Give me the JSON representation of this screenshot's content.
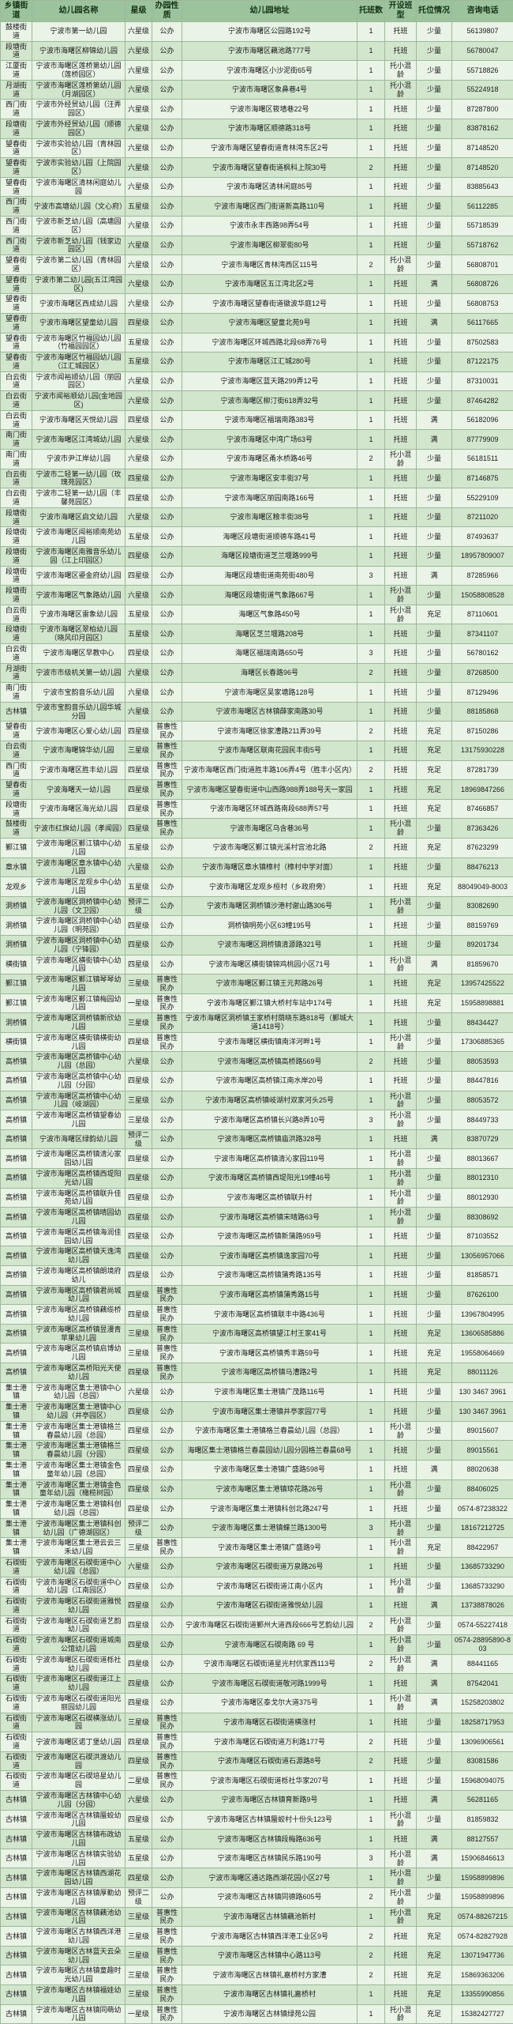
{
  "table": {
    "columns": [
      "乡镇街道",
      "幼儿园名称",
      "星级",
      "办园性质",
      "幼儿园地址",
      "托班数",
      "开设班型",
      "托位情况",
      "咨询电话"
    ],
    "rows": [
      [
        "鼓楼街道",
        "宁波市第一幼儿园",
        "六星级",
        "公办",
        "宁波市海曙区公园路192号",
        "1",
        "托班",
        "少量",
        "56139807"
      ],
      [
        "段塘街道",
        "宁波市海曙区柳锦幼儿园",
        "六星级",
        "公办",
        "宁波市海曙区藕池路777号",
        "1",
        "托班",
        "少量",
        "56780047"
      ],
      [
        "江厦街道",
        "宁波市海曙区莲桥第幼儿园（莲桥园区）",
        "六星级",
        "公办",
        "宁波市海曙区小沙泥街65号",
        "1",
        "托小混龄",
        "少量",
        "55718826"
      ],
      [
        "月湖街道",
        "宁波市海曙区莲桥第幼儿园（月湖园区）",
        "六星级",
        "公办",
        "宁波市海曙区象鼻巷4号",
        "1",
        "托小混龄",
        "少量",
        "55224918"
      ],
      [
        "西门街道",
        "宁波市外经贸幼儿园（汪弄园区）",
        "六星级",
        "公办",
        "宁波市海曙区筱墙巷22号",
        "1",
        "托班",
        "少量",
        "87287800"
      ],
      [
        "段塘街道",
        "宁波市外经贸幼儿园（顺德园区）",
        "六星级",
        "公办",
        "宁波市海曙区顺德路318号",
        "1",
        "托班",
        "少量",
        "83878162"
      ],
      [
        "望春街道",
        "宁波市实验幼儿园（青林园区）",
        "六星级",
        "公办",
        "宁波市海曙区望春街道青林湾东区2号",
        "1",
        "托班",
        "少量",
        "87148520"
      ],
      [
        "望春街道",
        "宁波市实验幼儿园（上院园区）",
        "六星级",
        "公办",
        "宁波市海曙区望春街道枫科上院30号",
        "2",
        "托班",
        "少量",
        "87148520"
      ],
      [
        "望春街道",
        "宁波市海曙区清林闲庭幼儿园",
        "六星级",
        "公办",
        "宁波市海曙区清林闲庭85号",
        "1",
        "托班",
        "少量",
        "83885643"
      ],
      [
        "西门街道",
        "宁波市高塘幼儿园（文心府）",
        "五星级",
        "公办",
        "宁波市海曙区西门街道新高路110号",
        "1",
        "托班",
        "少量",
        "56112285"
      ],
      [
        "西门街道",
        "宁波市新芝幼儿园（高塘园区）",
        "六星级",
        "公办",
        "宁波市永丰西路98弄54号",
        "1",
        "托班",
        "少量",
        "55718539"
      ],
      [
        "西门街道",
        "宁波市新芝幼儿园（钱家边园区）",
        "六星级",
        "公办",
        "宁波市海曙区柳翠街80号",
        "1",
        "托班",
        "少量",
        "55718762"
      ],
      [
        "望春街道",
        "宁波市第二幼儿园（青林园区）",
        "六星级",
        "公办",
        "宁波市海曙区青林湾西区115号",
        "2",
        "托小混龄",
        "少量",
        "56808701"
      ],
      [
        "望春街道",
        "宁波市第二幼儿园(五江湾园区)",
        "六星级",
        "公办",
        "宁波市海曙区五江湾北区2号",
        "1",
        "托班",
        "满",
        "56808726"
      ],
      [
        "望春街道",
        "宁波市海曙区西成幼儿园",
        "六星级",
        "公办",
        "宁波市海曙区望春街道徽波华庭12号",
        "1",
        "托班",
        "少量",
        "56808753"
      ],
      [
        "望春街道",
        "宁波市海曙区望童幼儿园",
        "四星级",
        "公办",
        "宁波市海曙区望童北苑9号",
        "1",
        "托班",
        "满",
        "56117665"
      ],
      [
        "望春街道",
        "宁波市海曙区竹福园幼儿园（竹福园园区）",
        "五星级",
        "公办",
        "宁波市海曙区环城西路北段68弄76号",
        "1",
        "托班",
        "少量",
        "87502583"
      ],
      [
        "望春街道",
        "宁波市海曙区竹福园幼儿园（江汇城园区）",
        "五星级",
        "公办",
        "宁波市海曙区江汇城280号",
        "1",
        "托班",
        "少量",
        "87122175"
      ],
      [
        "白云街道",
        "宁波市闻裕顺幼儿园（丽园园区）",
        "六星级",
        "公办",
        "宁波市海曙区蓝天路299弄12号",
        "1",
        "托班",
        "少量",
        "87310031"
      ],
      [
        "白云街道",
        "宁波市闻裕顺幼儿园(金地园区)",
        "六星级",
        "公办",
        "宁波市海曙区柳汀街618弄32号",
        "1",
        "托班",
        "少量",
        "87464282"
      ],
      [
        "白云街道",
        "宁波市海曙区天悦幼儿园",
        "四星级",
        "公办",
        "宁波市海曙区福瑞南路383号",
        "1",
        "托班",
        "满",
        "56182096"
      ],
      [
        "南门街道",
        "宁波市海曙区江湾城幼儿园",
        "六星级",
        "公办",
        "宁波市海曙区中湾广场63号",
        "1",
        "托班",
        "满",
        "87779909"
      ],
      [
        "南门街道",
        "宁波市尹江岸幼儿园",
        "六星级",
        "公办",
        "宁波市海曙区甬水桥路46号",
        "2",
        "托小混龄",
        "少量",
        "56181511"
      ],
      [
        "白云街道",
        "宁波市二轻第一幼儿园（玫瑰苑园区）",
        "四星级",
        "公办",
        "宁波市海曙区安丰街37号",
        "1",
        "托班",
        "少量",
        "87146875"
      ],
      [
        "白云街道",
        "宁波市二轻第一幼儿园（丰馨苑园区）",
        "四星级",
        "公办",
        "宁波市海曙区丽园南路166号",
        "1",
        "托班",
        "少量",
        "55229109"
      ],
      [
        "段塘街道",
        "宁波市海曙区启文幼儿园",
        "六星级",
        "公办",
        "宁波市海曙区粮丰街38号",
        "1",
        "托班",
        "少量",
        "87211020"
      ],
      [
        "段塘街道",
        "宁波市海曙区闻裕顺南苑幼儿园",
        "五星级",
        "公办",
        "海曙区段塘街道顺德车路41号",
        "1",
        "托班",
        "少量",
        "87493637"
      ],
      [
        "段塘街道",
        "宁波市海曙区南雅音乐幼儿园（江上印园区）",
        "四星级",
        "公办",
        "海曙区段塘街道芝兰堰路999号",
        "1",
        "托班",
        "少量",
        "18957809007"
      ],
      [
        "段塘街道",
        "宁波市海曙区鎏金府幼儿园",
        "四星级",
        "公办",
        "海曙区段塘街道南苑街480号",
        "3",
        "托班",
        "满",
        "87285966"
      ],
      [
        "段塘街道",
        "宁波市海曙区气象路幼儿园",
        "六星级",
        "公办",
        "海曙区段塘街道气象路667号",
        "1",
        "托小混龄",
        "少量",
        "15058808528"
      ],
      [
        "白云街道",
        "宁波市海曙区雷象幼儿园",
        "五星级",
        "公办",
        "海曙区气象路450号",
        "1",
        "托小混龄",
        "充足",
        "87110601"
      ],
      [
        "段塘街道",
        "宁波市海曙区翠柏幼儿园（晓风印月园区）",
        "五星级",
        "公办",
        "海曙区芝兰堰路208号",
        "1",
        "托班",
        "少量",
        "87341107"
      ],
      [
        "白云街道",
        "宁波市海曙区早教中心",
        "四星级",
        "公办",
        "海曙区福瑞南路650号",
        "3",
        "托班",
        "少量",
        "56780162"
      ],
      [
        "月湖街道",
        "宁波市市级机关第一幼儿园",
        "六星级",
        "公办",
        "海曙区长春路96号",
        "2",
        "托班",
        "少量",
        "87268500"
      ],
      [
        "南门街道",
        "宁波市宝韵音乐幼儿园",
        "六星级",
        "公办",
        "宁波市海曙区吴家塘路128号",
        "1",
        "托班",
        "少量",
        "87129496"
      ],
      [
        "古林镇",
        "宁波市宝韵音乐幼儿园华城分园",
        "六星级",
        "公办",
        "宁波市海曙区古林镇薛家南路30号",
        "1",
        "托班",
        "少量",
        "88185868"
      ],
      [
        "望春街道",
        "宁波市海曙区心爱心幼儿园",
        "四星级",
        "普惠性民办",
        "宁波市海曙区徐家漕路211弄39号",
        "2",
        "托班",
        "充足",
        "87150286"
      ],
      [
        "白云街道",
        "宁波市海曙锦华幼儿园",
        "三星级",
        "普惠性民办",
        "宁波市海曙区联南花园民丰街5号",
        "1",
        "托班",
        "充足",
        "13175930228"
      ],
      [
        "西门街道",
        "宁波市海曙区胜丰幼儿园",
        "四星级",
        "普惠性民办",
        "宁波市海曙区西门街道胜丰路106弄4号（胜丰小区内）",
        "2",
        "托班",
        "充足",
        "87281739"
      ],
      [
        "望春街道",
        "宁波海曙天一幼儿园",
        "四星级",
        "普惠性民办",
        "宁波市海曙区望春街道中山西路988弄188号天一家园",
        "1",
        "托班",
        "充足",
        "18969847266"
      ],
      [
        "段塘街道",
        "宁波市海曙区海光幼儿园",
        "四星级",
        "普惠性民办",
        "宁波市海曙区环城西路南段688弄57号",
        "1",
        "托班",
        "充足",
        "87466857"
      ],
      [
        "鼓楼街道",
        "宁波市红旗幼儿园（孝闻园）",
        "四星级",
        "普惠性民办",
        "宁波市海曙区乌含巷36号",
        "1",
        "托小混龄",
        "少量",
        "87363426"
      ],
      [
        "鄞江镇",
        "宁波市海曙区鄞江镇中心幼儿园",
        "五星级",
        "公办",
        "宁波市海曙区鄞江镇光溪村宫池北路",
        "2",
        "托班",
        "充足",
        "87623299"
      ],
      [
        "章水镇",
        "宁波市海曙区章水镇中心幼儿园",
        "六星级",
        "公办",
        "宁波市海曙区章水镇樟村（樟村中学对面）",
        "1",
        "托班",
        "少量",
        "88476213"
      ],
      [
        "龙观乡",
        "宁波市海曙区龙观乡中心幼儿园",
        "五星级",
        "公办",
        "宁波市海曙区龙观乡桓村（乡政府旁）",
        "1",
        "托班",
        "充足",
        "88049049-8003"
      ],
      [
        "洞桥镇",
        "宁波市海曙区洞桥镇中心幼儿园（文卫园）",
        "预评二级",
        "公办",
        "宁波市海曙区洞桥镇沙港村谢山路306号",
        "1",
        "托小混龄",
        "少量",
        "83082690"
      ],
      [
        "洞桥镇",
        "宁波市海曙区洞桥镇中心幼儿园（明苑园）",
        "四星级",
        "公办",
        "洞桥镇明苑小区63幢195号",
        "1",
        "托班",
        "少量",
        "88159769"
      ],
      [
        "洞桥镇",
        "宁波市海曙区洞桥镇中心幼儿园（宁锋园）",
        "四星级",
        "公办",
        "宁波市海曙区洞桥镇清源路321号",
        "1",
        "托班",
        "少量",
        "89201734"
      ],
      [
        "横街镇",
        "宁波市海曙区横街镇中心幼儿园",
        "四星级",
        "公办",
        "宁波市海曙区横街镇锦鸡桃园小区71号",
        "1",
        "托小混龄",
        "满",
        "81859670"
      ],
      [
        "鄞江镇",
        "宁波市海曙区鄞江镇琴琴幼儿园",
        "三星级",
        "普惠性民办",
        "宁波市海曙区鄞江镇王元邦路26号",
        "1",
        "托班",
        "充足",
        "13957425522"
      ],
      [
        "鄞江镇",
        "宁波市海曙区鄞江镇梅园幼儿园",
        "一星级",
        "普惠性民办",
        "宁波市海曙区鄞江镇大桥村车站中174号",
        "1",
        "托班",
        "充足",
        "15958898881"
      ],
      [
        "洞桥镇",
        "宁波市海曙区洞桥镇新欣幼儿园",
        "三星级",
        "普惠性民办",
        "宁波市海曙区洞桥镇王家桥村荫晓东路818号（鄞城大道1418号）",
        "1",
        "托班",
        "少量",
        "88434427"
      ],
      [
        "横街镇",
        "宁波市海曙区横街镇横街幼儿园",
        "四星级",
        "普惠性民办",
        "宁波市海曙区横街镇南洋河畔1号",
        "1",
        "托小混龄",
        "少量",
        "17306885365"
      ],
      [
        "高桥镇",
        "宁波市海曙区高桥镇中心幼儿园（总园）",
        "六星级",
        "公办",
        "宁波市海曙区高桥镇高桥路569号",
        "2",
        "托班",
        "少量",
        "88053593"
      ],
      [
        "高桥镇",
        "宁波市海曙区高桥镇中心幼儿园（分园）",
        "四星级",
        "公办",
        "宁波市海曙区高桥镇江南水岸20号",
        "1",
        "托班",
        "少量",
        "88447816"
      ],
      [
        "高桥镇",
        "宁波市海曙区高桥镇中心幼儿园（岐湖园）",
        "三星级",
        "公办",
        "宁波市海曙区高桥镇岐湖村双家河头25号",
        "1",
        "托小混龄",
        "少量",
        "88053572"
      ],
      [
        "高桥镇",
        "宁波市海曙区高桥镇望春幼儿园",
        "三星级",
        "公办",
        "宁波市海曙区高桥镇长兴路8弄10号",
        "3",
        "托小混龄",
        "少量",
        "88449733"
      ],
      [
        "高桥镇",
        "宁波市海曙区绿韵幼儿园",
        "预评二级",
        "公办",
        "宁波市海曙区高桥镇庙洪路328号",
        "1",
        "托班",
        "满",
        "83870729"
      ],
      [
        "高桥镇",
        "宁波市海曙区高桥镇清沁家园幼儿园",
        "四星级",
        "公办",
        "宁波市海曙区高桥镇清沁家园119号",
        "1",
        "托小混龄",
        "少量",
        "88013667"
      ],
      [
        "高桥镇",
        "宁波市海曙区高桥镇西堤阳光幼儿园",
        "四星级",
        "公办",
        "宁波市海曙区高桥镇西堤阳光19幢46号",
        "1",
        "托小混龄",
        "少量",
        "88012310"
      ],
      [
        "高桥镇",
        "宁波市海曙区高桥镇联升佳苑幼儿园",
        "四星级",
        "公办",
        "宁波市海曙区高桥镇联升村",
        "1",
        "托小混龄",
        "少量",
        "88012930"
      ],
      [
        "高桥镇",
        "宁波市海曙区高桥镇晴园幼儿园",
        "四星级",
        "公办",
        "宁波市海曙区高桥镇宋晴路63号",
        "1",
        "托小混龄",
        "少量",
        "88308692"
      ],
      [
        "高桥镇",
        "宁波市海曙区高桥镇海润佳园幼儿园",
        "四星级",
        "公办",
        "宁波市海曙区高桥镇新蒲路959号",
        "1",
        "托班",
        "少量",
        "87103552"
      ],
      [
        "高桥镇",
        "宁波市海曙区高桥镇天逸湾幼儿园",
        "四星级",
        "公办",
        "宁波市海曙区高桥镇逸家园70号",
        "1",
        "托班",
        "少量",
        "13056957066"
      ],
      [
        "高桥镇",
        "宁波市海曙区高桥镇朗境府幼儿",
        "四星级",
        "公办",
        "宁波市海曙区高桥镇蒲秀路135号",
        "1",
        "托班",
        "少量",
        "81858571"
      ],
      [
        "高桥镇",
        "宁波市海曙区高桥镇君尚城幼儿园",
        "四星级",
        "普惠性民办",
        "宁波市海曙区高桥镇蒲秀路15号",
        "1",
        "托班",
        "少量",
        "87626100"
      ],
      [
        "高桥镇",
        "宁波市海曙区高桥镇藕缆桥幼儿园",
        "四星级",
        "普惠性民办",
        "宁波市海曙区高桥镇联丰中路436号",
        "1",
        "托班",
        "少量",
        "13967804995"
      ],
      [
        "高桥镇",
        "宁波市海曙区高桥镇昱漫青苹果幼儿园",
        "三星级",
        "普惠性民办",
        "宁波市海曙区高桥镇望江村王家41号",
        "1",
        "托班",
        "充足",
        "13606585886"
      ],
      [
        "高桥镇",
        "宁波市海曙区高桥镇启博幼儿园",
        "三星级",
        "普惠性民办",
        "宁波市海曙区高桥镇秀丰路59号",
        "1",
        "托班",
        "充足",
        "19558064669"
      ],
      [
        "高桥镇",
        "宁波市海曙区高桥阳光天使幼儿园",
        "四星级",
        "普惠性民办",
        "宁波市海曙区高桥镇马漕路2号",
        "1",
        "托班",
        "充足",
        "88011126"
      ],
      [
        "集士港镇",
        "宁波市海曙区集士港镇中心幼儿园（总园）",
        "六星级",
        "公办",
        "宁波市海曙区集士港镇广茂路116号",
        "1",
        "托班",
        "少量",
        "130 3467 3961"
      ],
      [
        "集士港镇",
        "宁波市海曙区集士港镇中心幼儿园（井亭园区）",
        "四星级",
        "公办",
        "宁波市海曙区集士港镇井亭家园77号",
        "1",
        "托班",
        "少量",
        "130 3467 3961"
      ],
      [
        "集士港镇",
        "宁波市海曙区集士港镇格兰春晨幼儿园（总园）",
        "四星级",
        "公办",
        "宁波市海曙区集士港镇格兰春晨幼儿园（总园）",
        "1",
        "托小混龄",
        "少量",
        "89015607"
      ],
      [
        "集士港镇",
        "宁波市海曙区集士港镇格兰春晨幼儿园（分园）",
        "四星级",
        "公办",
        "海曙区集士港镇格兰春晨园幼儿园分园格兰春晨68号",
        "1",
        "托班",
        "少量",
        "89015561"
      ],
      [
        "集士港镇",
        "宁波市海曙区集士港镇金色童年幼儿园（总园）",
        "四星级",
        "公办",
        "宁波市海曙区集士港镇广盛路598号",
        "1",
        "托班",
        "满",
        "88020638"
      ],
      [
        "集士港镇",
        "宁波市海曙区集士港镇金色童年幼儿园（橄榄树园）",
        "四星级",
        "公办",
        "宁波市海曙区集士港镇琼花路26号",
        "1",
        "托小混龄",
        "少量",
        "88406025"
      ],
      [
        "集士港镇",
        "宁波市海曙区集士港镇科创幼儿园（总园）",
        "四星级",
        "公办",
        "宁波市海曙区集士港镇科创北路247号",
        "1",
        "托班",
        "少量",
        "0574-87238322"
      ],
      [
        "集士港镇",
        "宁波市海曙区集士港镇科创幼儿园（广德湖园区）",
        "预评二级",
        "公办",
        "宁波市海曙区集士港镇蝶兰路1300号",
        "3",
        "托小混龄",
        "少量",
        "18167212725"
      ],
      [
        "集士港镇",
        "宁波市海曙区集士港云云三禾幼儿园",
        "三星级",
        "普惠性民办",
        "宁波市海曙区集士港镇广盛路9号",
        "1",
        "托小混龄",
        "充足",
        "88422957"
      ],
      [
        "石碶街道",
        "宁波市海曙区石碶街道中心幼儿园（总园）",
        "六星级",
        "公办",
        "宁波市海曙区石碶街道万泉路26号",
        "1",
        "托班",
        "少量",
        "13685733290"
      ],
      [
        "石碶街道",
        "宁波市海曙区石碶街道中心幼儿园（江南园区）",
        "四星级",
        "公办",
        "宁波市海曙区石碶街道江南小区内",
        "1",
        "托小混龄",
        "少量",
        "13685733290"
      ],
      [
        "石碶街道",
        "宁波市海曙区石碶街道雅悦幼儿园",
        "四星级",
        "公办",
        "宁波市海曙区石碶街道雅悦幼儿园",
        "1",
        "托班",
        "满",
        "13738878026"
      ],
      [
        "石碶街道",
        "宁波市海曙区石碶街道艺韵幼儿园",
        "四星级",
        "公办",
        "宁波市海曙区石碶街道鄞州大道西段666号艺韵幼儿园",
        "2",
        "托小混龄",
        "少量",
        "0574-55227418"
      ],
      [
        "石碶街道",
        "宁波市海曙区石碶街道城南公馆幼儿园",
        "四星级",
        "公办",
        "宁波市海曙区石碶南路 69 号",
        "1",
        "托小混龄",
        "少量",
        "0574-28895890-803"
      ],
      [
        "石碶街道",
        "宁波市海曙区石碶街道栎社幼儿园",
        "四星级",
        "公办",
        "宁波市海曙区石碶街道星光村伉家西113号",
        "2",
        "托小混龄",
        "满",
        "88441165"
      ],
      [
        "石碶街道",
        "宁波市海曙区石碶街道江上幼儿园",
        "四星级",
        "公办",
        "宁波市海曙区石碶街道敬河路1999号",
        "1",
        "托班",
        "满",
        "87542041"
      ],
      [
        "石碶街道",
        "宁波市海曙区石碶街道阳光丽园幼儿园",
        "四星级",
        "公办",
        "宁波市海曙区泰戈尔大道375号",
        "1",
        "托小混龄",
        "满",
        "15258203802"
      ],
      [
        "石碶街道",
        "宁波市海曙区石碶横涨幼儿园",
        "三星级",
        "普惠性民办",
        "宁波市海曙区石碶街道横涨村",
        "1",
        "托班",
        "少量",
        "18258717953"
      ],
      [
        "石碶街道",
        "宁波市海曙区诺丁堡幼儿园",
        "四星级",
        "普惠性民办",
        "宁波市海曙区石碶街道万利路177号",
        "2",
        "托班",
        "少量",
        "13096906561"
      ],
      [
        "石碶街道",
        "宁波市海曙区石碶洪渡幼儿园",
        "四星级",
        "普惠性民办",
        "宁波市海曙区石碶街道石源路8号",
        "2",
        "托班",
        "少量",
        "83081586"
      ],
      [
        "石碶街道",
        "宁波市海曙区石碶培星幼儿园",
        "二星级",
        "普惠性民办",
        "宁波市海曙区石碶街道栎社华家207号",
        "1",
        "托班",
        "少量",
        "15968094075"
      ],
      [
        "古林镇",
        "宁波市海曙区古林镇中心幼儿园（分园）",
        "六星级",
        "公办",
        "宁波市海曙区古林镇育新路9号",
        "1",
        "托班",
        "满",
        "56281165"
      ],
      [
        "古林镇",
        "宁波市海曙区古林镇蜃蛟幼儿园",
        "四星级",
        "公办",
        "宁波市海曙区古林镇蜃蛟村十份头123号",
        "1",
        "托小混龄",
        "少量",
        "81859832"
      ],
      [
        "古林镇",
        "宁波市海曙区古林镇布政幼儿园",
        "五星级",
        "公办",
        "宁波市海曙区古林镇段梅路636号",
        "1",
        "托班",
        "满",
        "88127557"
      ],
      [
        "古林镇",
        "宁波市海曙区古林镇实验幼儿园",
        "五星级",
        "公办",
        "宁波市海曙区古林镇民乐路190号",
        "3",
        "托小混龄",
        "满",
        "15906846613"
      ],
      [
        "古林镇",
        "宁波市海曙区古林镇西湖花园幼儿园",
        "四星级",
        "公办",
        "宁波市海曙区通达路西湖花园小区27号",
        "1",
        "托小混龄",
        "少量",
        "15958899896"
      ],
      [
        "古林镇",
        "宁波市海曙区古林镇厚勤幼儿园",
        "预评二级",
        "公办",
        "宁波市海曙区古林镇同德路605号",
        "2",
        "托小混龄",
        "少量",
        "15958899896"
      ],
      [
        "古林镇",
        "宁波市海曙区古林镇藕池幼儿园",
        "三星级",
        "普惠性民办",
        "宁波市海曙区古林镇藕池新村",
        "1",
        "托小混龄",
        "充足",
        "0574-88267215"
      ],
      [
        "古林镇",
        "宁波市海曙区古林镇西洋港幼儿园",
        "三星级",
        "普惠性民办",
        "宁波市海曙区古林镇西洋港工业区9号",
        "2",
        "托班",
        "充足",
        "0574-82827928"
      ],
      [
        "古林镇",
        "宁波市海曙区古林蓝天云朵幼儿园",
        "三星级",
        "普惠性民办",
        "宁波市海曙区古林镇中心路113号",
        "2",
        "托班",
        "充足",
        "13071947736"
      ],
      [
        "古林镇",
        "宁波市海曙区古林镇童趣时光幼儿园",
        "三星级",
        "普惠性民办",
        "宁波市海曙区古林镇礼嘉桥村方家漕",
        "2",
        "托班",
        "充足",
        "15869363206"
      ],
      [
        "古林镇",
        "宁波市海曙区古林镇福娃幼儿园",
        "三星级",
        "普惠性民办",
        "宁波市海曙区古林镇礼嘉桥村",
        "1",
        "托班",
        "充足",
        "13355990856"
      ],
      [
        "古林镇",
        "宁波市海曙区古林镇同萌幼儿园",
        "一星级",
        "普惠性民办",
        "宁波市海曙区古林镇绿苑公园",
        "1",
        "托小混龄",
        "充足",
        "15382427727"
      ]
    ],
    "colors": {
      "header_bg": "#9cc39c",
      "row_odd_bg": "#e9f3e6",
      "row_even_bg": "#d2e5cd",
      "grid_line": "#9db89a"
    }
  }
}
